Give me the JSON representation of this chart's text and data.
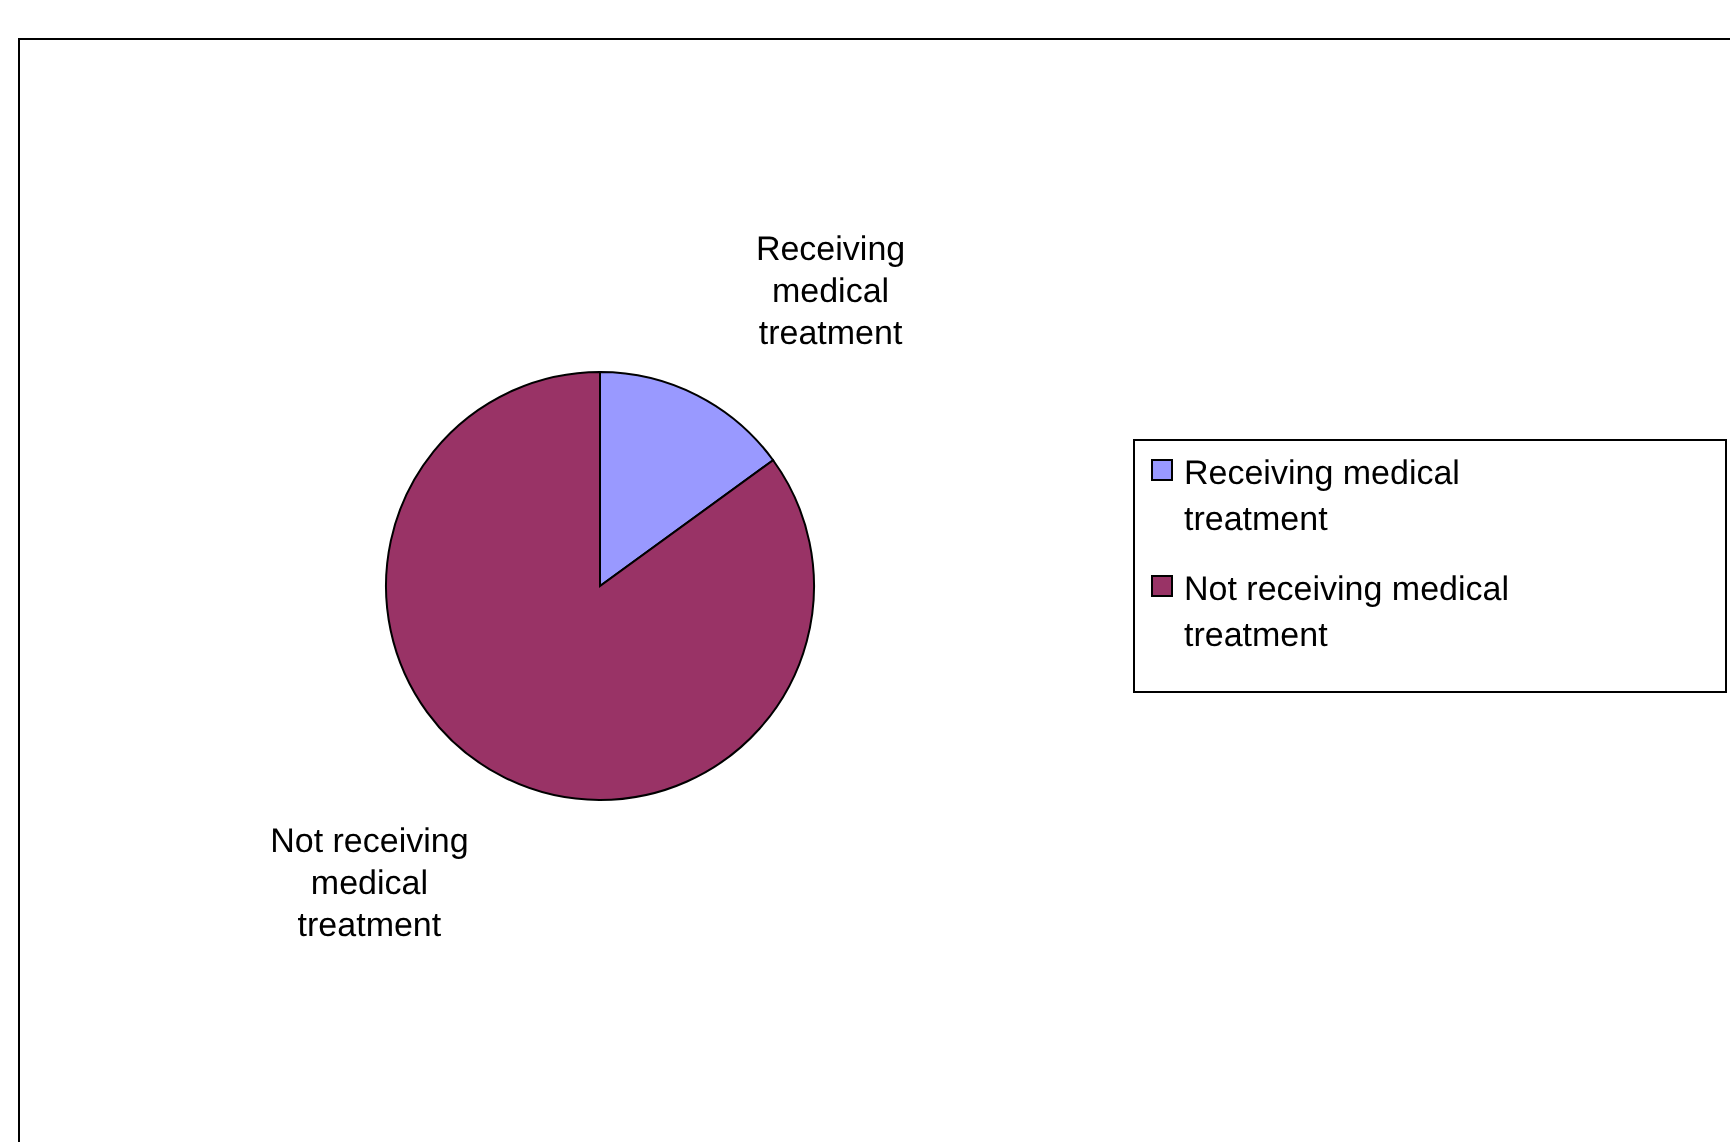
{
  "chart_data": {
    "type": "pie",
    "categories": [
      "Receiving medical treatment",
      "Not receiving medical treatment"
    ],
    "values": [
      15,
      85
    ],
    "colors": [
      "#9999ff",
      "#993366"
    ],
    "legend": "right"
  }
}
